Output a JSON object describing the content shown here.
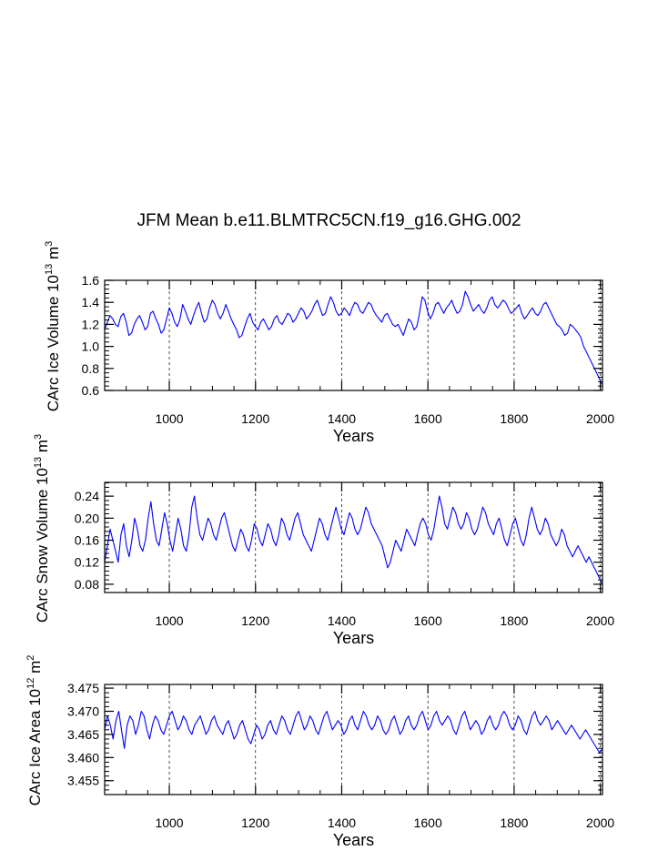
{
  "figure": {
    "title": "JFM Mean b.e11.BLMTRC5CN.f19_g16.GHG.002",
    "line_color": "#0000ff"
  },
  "chart_data": [
    {
      "type": "line",
      "name": "ice-volume",
      "ylabel_text": "CArc Ice Volume 10",
      "ylabel_exp": "13",
      "ylabel_unit": "m",
      "ylabel_unit_exp": "3",
      "xlabel": "Years",
      "xlim": [
        850,
        2005
      ],
      "ylim": [
        0.6,
        1.6
      ],
      "xticks": [
        1000,
        1200,
        1400,
        1600,
        1800,
        2000
      ],
      "yticks": [
        0.6,
        0.8,
        1.0,
        1.2,
        1.4,
        1.6
      ],
      "ytick_labels": [
        "0.6",
        "0.8",
        "1.0",
        "1.2",
        "1.4",
        "1.6"
      ],
      "grid_x": "dashed",
      "series": [
        {
          "name": "Ice Volume",
          "x_start": 850,
          "x_end": 2005,
          "values": [
            1.15,
            1.22,
            1.28,
            1.25,
            1.2,
            1.18,
            1.27,
            1.3,
            1.22,
            1.1,
            1.12,
            1.2,
            1.25,
            1.28,
            1.22,
            1.15,
            1.18,
            1.3,
            1.32,
            1.25,
            1.2,
            1.12,
            1.15,
            1.25,
            1.35,
            1.3,
            1.22,
            1.18,
            1.25,
            1.38,
            1.32,
            1.25,
            1.2,
            1.28,
            1.35,
            1.4,
            1.3,
            1.22,
            1.25,
            1.35,
            1.42,
            1.38,
            1.3,
            1.25,
            1.3,
            1.38,
            1.32,
            1.25,
            1.2,
            1.15,
            1.08,
            1.1,
            1.18,
            1.25,
            1.3,
            1.22,
            1.18,
            1.15,
            1.22,
            1.25,
            1.2,
            1.15,
            1.18,
            1.25,
            1.28,
            1.22,
            1.2,
            1.25,
            1.3,
            1.28,
            1.22,
            1.25,
            1.3,
            1.35,
            1.32,
            1.25,
            1.28,
            1.32,
            1.38,
            1.42,
            1.35,
            1.28,
            1.3,
            1.38,
            1.45,
            1.4,
            1.32,
            1.28,
            1.3,
            1.35,
            1.32,
            1.28,
            1.35,
            1.4,
            1.38,
            1.32,
            1.3,
            1.35,
            1.4,
            1.38,
            1.32,
            1.28,
            1.25,
            1.22,
            1.28,
            1.3,
            1.25,
            1.2,
            1.18,
            1.2,
            1.15,
            1.1,
            1.18,
            1.25,
            1.22,
            1.15,
            1.18,
            1.3,
            1.45,
            1.42,
            1.32,
            1.25,
            1.3,
            1.38,
            1.4,
            1.35,
            1.3,
            1.35,
            1.38,
            1.42,
            1.35,
            1.3,
            1.32,
            1.38,
            1.5,
            1.45,
            1.38,
            1.32,
            1.35,
            1.38,
            1.33,
            1.3,
            1.35,
            1.42,
            1.45,
            1.38,
            1.35,
            1.38,
            1.42,
            1.4,
            1.35,
            1.3,
            1.32,
            1.35,
            1.38,
            1.3,
            1.25,
            1.28,
            1.32,
            1.35,
            1.3,
            1.28,
            1.32,
            1.38,
            1.4,
            1.35,
            1.3,
            1.25,
            1.2,
            1.18,
            1.15,
            1.1,
            1.12,
            1.2,
            1.18,
            1.15,
            1.12,
            1.08,
            1.0,
            0.95,
            0.9,
            0.85,
            0.8,
            0.75,
            0.7,
            0.65
          ]
        }
      ]
    },
    {
      "type": "line",
      "name": "snow-volume",
      "ylabel_text": "CArc Snow Volume 10",
      "ylabel_exp": "13",
      "ylabel_unit": "m",
      "ylabel_unit_exp": "3",
      "xlabel": "Years",
      "xlim": [
        850,
        2005
      ],
      "ylim": [
        0.065,
        0.265
      ],
      "xticks": [
        1000,
        1200,
        1400,
        1600,
        1800,
        2000
      ],
      "yticks": [
        0.08,
        0.12,
        0.16,
        0.2,
        0.24
      ],
      "ytick_labels": [
        "0.08",
        "0.12",
        "0.16",
        "0.20",
        "0.24"
      ],
      "grid_x": "dashed",
      "series": [
        {
          "name": "Snow Volume",
          "x_start": 850,
          "x_end": 2005,
          "values": [
            0.12,
            0.15,
            0.18,
            0.16,
            0.14,
            0.12,
            0.17,
            0.19,
            0.15,
            0.13,
            0.16,
            0.2,
            0.18,
            0.15,
            0.14,
            0.16,
            0.2,
            0.23,
            0.19,
            0.16,
            0.15,
            0.18,
            0.21,
            0.19,
            0.16,
            0.14,
            0.17,
            0.2,
            0.18,
            0.15,
            0.14,
            0.17,
            0.22,
            0.24,
            0.2,
            0.17,
            0.16,
            0.18,
            0.2,
            0.19,
            0.17,
            0.16,
            0.18,
            0.2,
            0.21,
            0.19,
            0.17,
            0.15,
            0.14,
            0.16,
            0.18,
            0.17,
            0.15,
            0.14,
            0.16,
            0.19,
            0.18,
            0.16,
            0.15,
            0.17,
            0.19,
            0.18,
            0.16,
            0.15,
            0.17,
            0.2,
            0.19,
            0.17,
            0.16,
            0.18,
            0.2,
            0.21,
            0.19,
            0.17,
            0.16,
            0.15,
            0.14,
            0.16,
            0.18,
            0.2,
            0.19,
            0.17,
            0.16,
            0.18,
            0.2,
            0.22,
            0.2,
            0.18,
            0.17,
            0.19,
            0.21,
            0.2,
            0.18,
            0.17,
            0.18,
            0.2,
            0.22,
            0.21,
            0.19,
            0.18,
            0.17,
            0.16,
            0.15,
            0.13,
            0.11,
            0.12,
            0.14,
            0.16,
            0.15,
            0.14,
            0.16,
            0.18,
            0.17,
            0.16,
            0.15,
            0.17,
            0.19,
            0.2,
            0.19,
            0.17,
            0.16,
            0.18,
            0.21,
            0.24,
            0.22,
            0.19,
            0.18,
            0.2,
            0.22,
            0.21,
            0.19,
            0.18,
            0.19,
            0.21,
            0.2,
            0.18,
            0.17,
            0.18,
            0.2,
            0.22,
            0.21,
            0.19,
            0.18,
            0.17,
            0.19,
            0.2,
            0.18,
            0.16,
            0.15,
            0.17,
            0.19,
            0.2,
            0.18,
            0.16,
            0.15,
            0.17,
            0.2,
            0.22,
            0.2,
            0.18,
            0.17,
            0.18,
            0.2,
            0.19,
            0.17,
            0.16,
            0.15,
            0.16,
            0.18,
            0.17,
            0.15,
            0.14,
            0.13,
            0.14,
            0.15,
            0.14,
            0.13,
            0.12,
            0.13,
            0.12,
            0.11,
            0.1,
            0.09,
            0.08
          ]
        }
      ]
    },
    {
      "type": "line",
      "name": "ice-area",
      "ylabel_text": "CArc Ice Area 10",
      "ylabel_exp": "12",
      "ylabel_unit": "m",
      "ylabel_unit_exp": "2",
      "xlabel": "Years",
      "xlim": [
        850,
        2005
      ],
      "ylim": [
        3.452,
        3.4758
      ],
      "xticks": [
        1000,
        1200,
        1400,
        1600,
        1800,
        2000
      ],
      "yticks": [
        3.455,
        3.46,
        3.465,
        3.47,
        3.475
      ],
      "ytick_labels": [
        "3.455",
        "3.460",
        "3.465",
        "3.470",
        "3.475"
      ],
      "grid_x": "dashed",
      "series": [
        {
          "name": "Ice Area",
          "x_start": 850,
          "x_end": 2005,
          "values": [
            3.466,
            3.469,
            3.467,
            3.464,
            3.468,
            3.47,
            3.466,
            3.462,
            3.467,
            3.469,
            3.468,
            3.465,
            3.467,
            3.47,
            3.469,
            3.466,
            3.464,
            3.467,
            3.469,
            3.468,
            3.466,
            3.465,
            3.467,
            3.469,
            3.47,
            3.468,
            3.466,
            3.467,
            3.469,
            3.468,
            3.466,
            3.465,
            3.467,
            3.468,
            3.469,
            3.467,
            3.465,
            3.466,
            3.468,
            3.469,
            3.467,
            3.466,
            3.465,
            3.467,
            3.468,
            3.466,
            3.464,
            3.465,
            3.467,
            3.468,
            3.466,
            3.464,
            3.463,
            3.465,
            3.467,
            3.466,
            3.464,
            3.465,
            3.467,
            3.468,
            3.466,
            3.465,
            3.467,
            3.469,
            3.468,
            3.466,
            3.465,
            3.467,
            3.469,
            3.47,
            3.468,
            3.466,
            3.467,
            3.469,
            3.468,
            3.466,
            3.465,
            3.467,
            3.469,
            3.47,
            3.468,
            3.466,
            3.467,
            3.468,
            3.467,
            3.465,
            3.466,
            3.468,
            3.469,
            3.467,
            3.466,
            3.468,
            3.47,
            3.469,
            3.467,
            3.466,
            3.467,
            3.469,
            3.468,
            3.466,
            3.465,
            3.466,
            3.468,
            3.469,
            3.467,
            3.465,
            3.466,
            3.468,
            3.469,
            3.467,
            3.466,
            3.467,
            3.469,
            3.47,
            3.468,
            3.466,
            3.467,
            3.469,
            3.47,
            3.468,
            3.467,
            3.468,
            3.469,
            3.468,
            3.466,
            3.465,
            3.467,
            3.469,
            3.47,
            3.468,
            3.466,
            3.467,
            3.468,
            3.467,
            3.465,
            3.466,
            3.468,
            3.469,
            3.467,
            3.466,
            3.467,
            3.469,
            3.47,
            3.469,
            3.467,
            3.466,
            3.467,
            3.469,
            3.468,
            3.466,
            3.465,
            3.467,
            3.469,
            3.47,
            3.468,
            3.467,
            3.468,
            3.469,
            3.468,
            3.466,
            3.467,
            3.468,
            3.467,
            3.466,
            3.465,
            3.466,
            3.467,
            3.466,
            3.465,
            3.464,
            3.465,
            3.466,
            3.465,
            3.464,
            3.463,
            3.462,
            3.461,
            3.462
          ]
        }
      ]
    }
  ]
}
